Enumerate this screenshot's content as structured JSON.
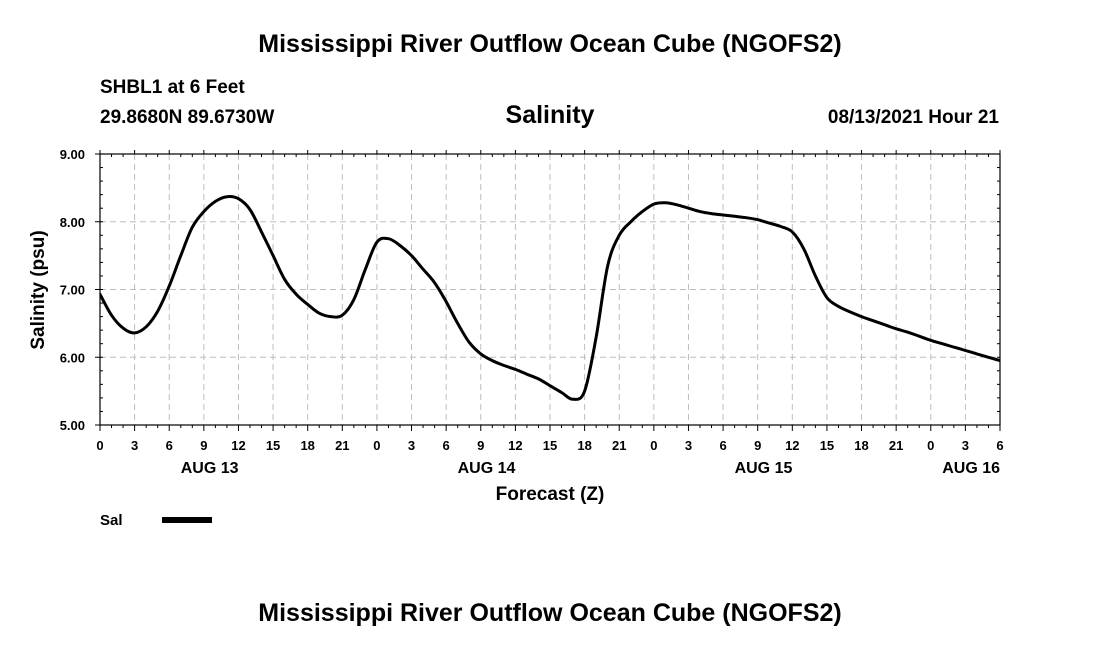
{
  "header": {
    "top_title": "Mississippi River Outflow Ocean Cube (NGOFS2)",
    "bottom_title": "Mississippi River Outflow Ocean Cube (NGOFS2)",
    "station": "SHBL1 at 6 Feet",
    "coords": "29.8680N  89.6730W",
    "variable": "Salinity",
    "timestamp": "08/13/2021 Hour 21"
  },
  "chart_data": {
    "type": "line",
    "title": "Salinity",
    "xlabel": "Forecast (Z)",
    "ylabel": "Salinity (psu)",
    "ylim": [
      5.0,
      9.0
    ],
    "xlim_hours": [
      0,
      78
    ],
    "grid": true,
    "y_ticks": [
      "5.00",
      "6.00",
      "7.00",
      "8.00",
      "9.00"
    ],
    "y_tick_values": [
      5,
      6,
      7,
      8,
      9
    ],
    "x_tick_labels": [
      "0",
      "3",
      "6",
      "9",
      "12",
      "15",
      "18",
      "21",
      "0",
      "3",
      "6",
      "9",
      "12",
      "15",
      "18",
      "21",
      "0",
      "3",
      "6",
      "9",
      "12",
      "15",
      "18",
      "21",
      "0",
      "3",
      "6"
    ],
    "day_labels": [
      {
        "label": "AUG 13",
        "hour": 9.5
      },
      {
        "label": "AUG 14",
        "hour": 33.5
      },
      {
        "label": "AUG 15",
        "hour": 57.5
      },
      {
        "label": "AUG 16",
        "hour": 75.5
      }
    ],
    "legend": {
      "label": "Sal",
      "placement": "bottom-left"
    },
    "series": [
      {
        "name": "Sal",
        "x": [
          0,
          1,
          2,
          3,
          4,
          5,
          6,
          7,
          8,
          9,
          10,
          11,
          12,
          13,
          14,
          15,
          16,
          17,
          18,
          19,
          20,
          21,
          22,
          23,
          24,
          25,
          26,
          27,
          28,
          29,
          30,
          31,
          32,
          33,
          34,
          35,
          36,
          37,
          38,
          39,
          40,
          41,
          42,
          43,
          44,
          45,
          46,
          47,
          48,
          49,
          50,
          51,
          52,
          53,
          54,
          55,
          56,
          57,
          58,
          59,
          60,
          61,
          62,
          63,
          64,
          65,
          66,
          67,
          68,
          69,
          70,
          71,
          72,
          73,
          74,
          75,
          76,
          77,
          78
        ],
        "values": [
          6.93,
          6.62,
          6.43,
          6.36,
          6.45,
          6.68,
          7.05,
          7.5,
          7.92,
          8.15,
          8.3,
          8.37,
          8.34,
          8.18,
          7.85,
          7.5,
          7.15,
          6.93,
          6.78,
          6.65,
          6.6,
          6.62,
          6.85,
          7.3,
          7.7,
          7.75,
          7.65,
          7.5,
          7.3,
          7.1,
          6.82,
          6.5,
          6.22,
          6.05,
          5.95,
          5.88,
          5.82,
          5.75,
          5.68,
          5.58,
          5.48,
          5.38,
          5.5,
          6.3,
          7.35,
          7.8,
          8.0,
          8.15,
          8.26,
          8.28,
          8.25,
          8.2,
          8.15,
          8.12,
          8.1,
          8.08,
          8.06,
          8.03,
          7.98,
          7.93,
          7.85,
          7.6,
          7.2,
          6.88,
          6.75,
          6.67,
          6.6,
          6.54,
          6.48,
          6.42,
          6.37,
          6.31,
          6.25,
          6.2,
          6.15,
          6.1,
          6.05,
          6.0,
          5.95
        ]
      }
    ]
  }
}
